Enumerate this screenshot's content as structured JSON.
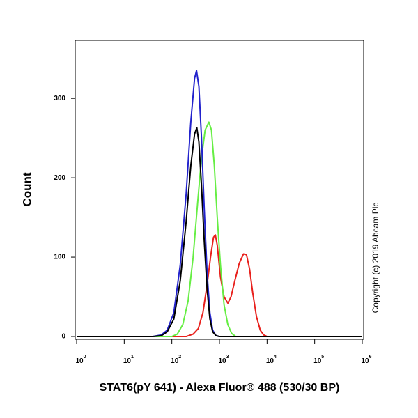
{
  "chart_data": {
    "type": "line",
    "y_label": "Count",
    "x_label": "STAT6(pY 641) - Alexa Fluor® 488 (530/30 BP)",
    "annotation": "Copyright (c) 2019 Abcam Plc",
    "xscale": "log",
    "xlim": [
      1,
      1000000
    ],
    "ylim": [
      -3.5,
      373
    ],
    "xticks": [
      {
        "value": 1,
        "label": "10",
        "exponent": "0"
      },
      {
        "value": 10,
        "label": "10",
        "exponent": "1"
      },
      {
        "value": 100,
        "label": "10",
        "exponent": "2"
      },
      {
        "value": 1000,
        "label": "10",
        "exponent": "3"
      },
      {
        "value": 10000,
        "label": "10",
        "exponent": "4"
      },
      {
        "value": 100000,
        "label": "10",
        "exponent": "5"
      },
      {
        "value": 1000000,
        "label": "10",
        "exponent": "6"
      }
    ],
    "yticks": [
      0,
      100,
      200,
      300
    ],
    "series": [
      {
        "color": "#e8201c",
        "x": [
          1,
          200,
          280,
          360,
          450,
          550,
          650,
          750,
          820,
          900,
          1050,
          1250,
          1500,
          1750,
          2100,
          2600,
          3200,
          3700,
          4300,
          5000,
          6000,
          7200,
          8500,
          10000,
          1000000
        ],
        "values": [
          0,
          0,
          3,
          10,
          30,
          65,
          100,
          125,
          128,
          115,
          75,
          50,
          42,
          50,
          70,
          92,
          104,
          103,
          85,
          55,
          25,
          8,
          2,
          0,
          0
        ]
      },
      {
        "color": "#66ee44",
        "x": [
          1,
          100,
          130,
          170,
          220,
          280,
          350,
          420,
          500,
          600,
          680,
          780,
          900,
          1050,
          1250,
          1500,
          1800,
          2200,
          1000000
        ],
        "values": [
          0,
          0,
          3,
          15,
          45,
          100,
          170,
          225,
          260,
          270,
          260,
          215,
          150,
          90,
          40,
          15,
          4,
          0,
          0
        ]
      },
      {
        "color": "#2222cc",
        "x": [
          1,
          40,
          60,
          80,
          110,
          150,
          200,
          250,
          300,
          330,
          370,
          420,
          480,
          550,
          630,
          720,
          850,
          1000,
          1000000
        ],
        "values": [
          0,
          0,
          2,
          8,
          30,
          90,
          180,
          270,
          325,
          335,
          315,
          250,
          160,
          80,
          30,
          8,
          1,
          0,
          0
        ]
      },
      {
        "color": "#000000",
        "x": [
          1,
          40,
          60,
          80,
          110,
          150,
          200,
          250,
          300,
          335,
          370,
          420,
          480,
          550,
          630,
          720,
          850,
          1000,
          1000000
        ],
        "values": [
          0,
          0,
          1,
          6,
          22,
          70,
          145,
          215,
          255,
          263,
          245,
          190,
          120,
          60,
          22,
          6,
          1,
          0,
          0
        ]
      }
    ]
  }
}
